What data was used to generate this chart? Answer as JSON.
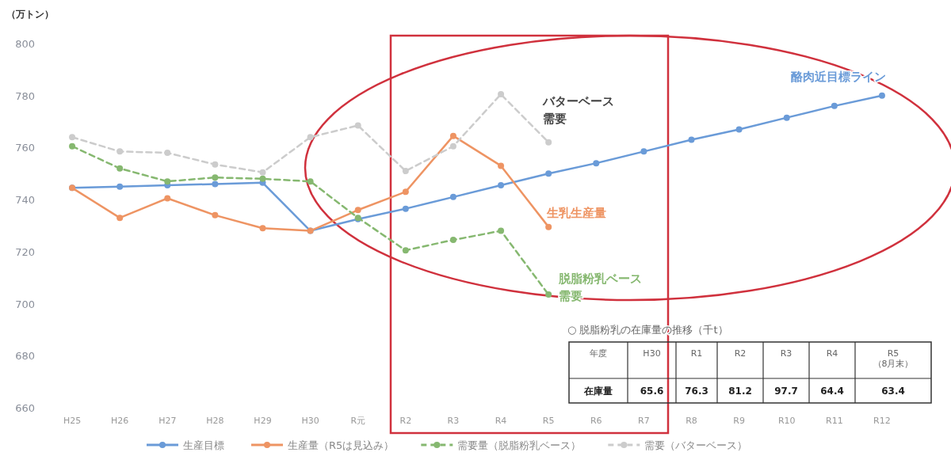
{
  "chart_data": [
    {
      "type": "line",
      "ylabel": "（万トン）",
      "categories": [
        "H25",
        "H26",
        "H27",
        "H28",
        "H29",
        "H30",
        "R元",
        "R2",
        "R3",
        "R4",
        "R5",
        "R6",
        "R7",
        "R8",
        "R9",
        "R10",
        "R11",
        "R12"
      ],
      "ylim": [
        660,
        800
      ],
      "yticks": [
        660,
        680,
        700,
        720,
        740,
        760,
        780,
        800
      ],
      "marker": "circle",
      "legend": "bottom",
      "series": [
        {
          "name": "生産目標",
          "color": "#6a9bd8",
          "line_style": "solid",
          "values": [
            744.5,
            745,
            745.5,
            746,
            746.5,
            728,
            732.5,
            736.5,
            741,
            745.5,
            750,
            754,
            758.5,
            763,
            767,
            771.5,
            776,
            780
          ]
        },
        {
          "name": "生産量（R5は見込み）",
          "color": "#ee9463",
          "line_style": "solid",
          "values": [
            744.5,
            733,
            740.5,
            734,
            729,
            728,
            736,
            743,
            764.5,
            753,
            729.5,
            null,
            null,
            null,
            null,
            null,
            null,
            null
          ]
        },
        {
          "name": "需要量（脱脂粉乳ベース）",
          "color": "#86b870",
          "line_style": "dashed",
          "values": [
            760.5,
            752,
            747,
            748.5,
            748,
            747,
            733,
            720.5,
            724.5,
            728,
            703.5,
            null,
            null,
            null,
            null,
            null,
            null,
            null
          ]
        },
        {
          "name": "需要（バターベース）",
          "color": "#cccccc",
          "line_style": "dashed",
          "values": [
            764,
            758.5,
            758,
            753.5,
            750.5,
            764,
            768.5,
            751,
            760.5,
            780.5,
            762,
            null,
            null,
            null,
            null,
            null,
            null,
            null
          ]
        }
      ],
      "annotations": [
        "酪肉近目標ライン",
        "バターベース需要",
        "生乳生産量",
        "脱脂粉乳ベース需要"
      ]
    },
    {
      "type": "heatmap",
      "title": "○ 脱脂粉乳の在庫量の推移（千t）",
      "xlabel": "年度",
      "categories": [
        "H30",
        "R1",
        "R2",
        "R3",
        "R4",
        "R5\n（8月末）"
      ],
      "y_categories": [
        "在庫量"
      ],
      "cells": [
        [
          65.6,
          76.3,
          81.2,
          97.7,
          64.4,
          63.4
        ]
      ],
      "data_labels": true
    }
  ]
}
